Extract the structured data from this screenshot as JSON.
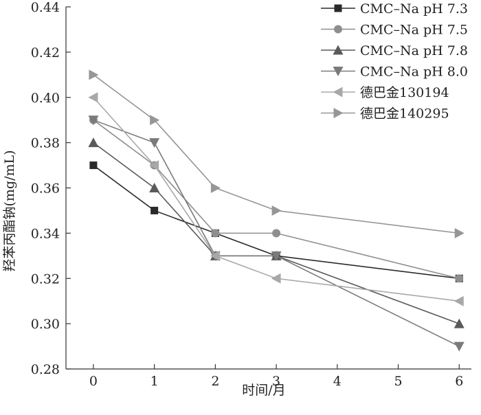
{
  "chart_data": {
    "type": "line",
    "title": "",
    "xlabel": "时间/月",
    "ylabel": "羟苯丙酯钠(mg/mL)",
    "x_ticks": [
      0,
      1,
      2,
      3,
      4,
      5,
      6
    ],
    "y_ticks": [
      "0.28",
      "0.30",
      "0.32",
      "0.34",
      "0.36",
      "0.38",
      "0.40",
      "0.42",
      "0.44"
    ],
    "xlim": [
      -0.45,
      6.2
    ],
    "ylim": [
      0.28,
      0.44
    ],
    "grid": false,
    "legend_position": "top-right",
    "x": [
      0,
      1,
      2,
      3,
      6
    ],
    "series": [
      {
        "name": "CMC–Na pH 7.3",
        "marker": "square",
        "color": "#2a2a2a",
        "values": [
          0.37,
          0.35,
          0.34,
          0.33,
          0.32
        ]
      },
      {
        "name": "CMC–Na pH 7.5",
        "marker": "circle",
        "color": "#8e8e8e",
        "values": [
          0.39,
          0.37,
          0.34,
          0.34,
          0.32
        ]
      },
      {
        "name": "CMC–Na pH 7.8",
        "marker": "triangle-up",
        "color": "#5a5a5a",
        "values": [
          0.38,
          0.36,
          0.33,
          0.33,
          0.3
        ]
      },
      {
        "name": "CMC–Na pH 8.0",
        "marker": "triangle-down",
        "color": "#7a7a7a",
        "values": [
          0.39,
          0.38,
          0.33,
          0.33,
          0.29
        ]
      },
      {
        "name": "德巴金130194",
        "marker": "triangle-left",
        "color": "#a8a8a8",
        "values": [
          0.4,
          0.37,
          0.33,
          0.32,
          0.31
        ]
      },
      {
        "name": "德巴金140295",
        "marker": "triangle-right",
        "color": "#969696",
        "values": [
          0.41,
          0.39,
          0.36,
          0.35,
          0.34
        ]
      }
    ]
  }
}
